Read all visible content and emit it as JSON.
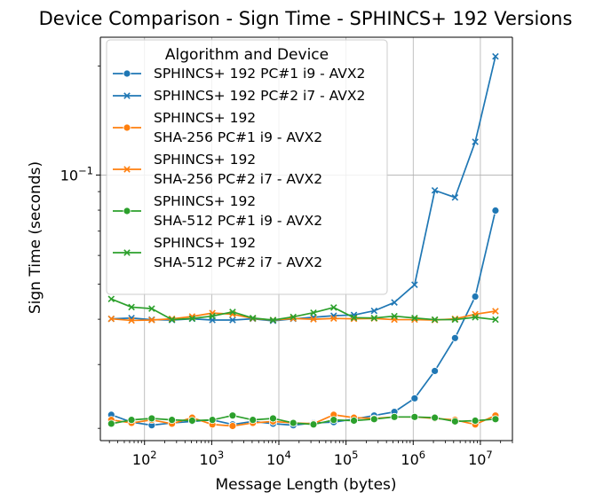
{
  "chart_data": {
    "type": "line",
    "title": "Device Comparison - Sign Time - SPHINCS+ 192 Versions",
    "xlabel": "Message Length (bytes)",
    "ylabel": "Sign Time (seconds)",
    "x_scale": "log",
    "y_scale": "log",
    "xlim": [
      22,
      30000000
    ],
    "ylim": [
      0.0185,
      0.24
    ],
    "x_ticks": [
      {
        "value": 100,
        "base": "10",
        "exp": "2"
      },
      {
        "value": 1000,
        "base": "10",
        "exp": "3"
      },
      {
        "value": 10000,
        "base": "10",
        "exp": "4"
      },
      {
        "value": 100000,
        "base": "10",
        "exp": "5"
      },
      {
        "value": 1000000,
        "base": "10",
        "exp": "6"
      },
      {
        "value": 10000000,
        "base": "10",
        "exp": "7"
      }
    ],
    "y_ticks": [
      {
        "value": 0.1,
        "base": "10",
        "exp": "−1"
      }
    ],
    "grid": true,
    "legend": {
      "title": "Algorithm and Device",
      "placement": "top-left"
    },
    "x": [
      32,
      64,
      128,
      256,
      512,
      1024,
      2048,
      4096,
      8192,
      16384,
      32768,
      65536,
      131072,
      262144,
      524288,
      1048576,
      2097152,
      4194304,
      8388608,
      16777216
    ],
    "series": [
      {
        "name_lines": [
          "SPHINCS+ 192 PC#1 i9 - AVX2"
        ],
        "color": "#1f77b4",
        "marker": "circle",
        "values": [
          0.0218,
          0.0208,
          0.0204,
          0.0207,
          0.0209,
          0.0211,
          0.0205,
          0.0209,
          0.0206,
          0.0204,
          0.0207,
          0.0208,
          0.0212,
          0.0217,
          0.0222,
          0.0242,
          0.0288,
          0.0355,
          0.0462,
          0.0798
        ]
      },
      {
        "name_lines": [
          "SPHINCS+ 192 PC#2 i7 - AVX2"
        ],
        "color": "#1f77b4",
        "marker": "x",
        "values": [
          0.0401,
          0.0403,
          0.0399,
          0.0398,
          0.0401,
          0.0398,
          0.0398,
          0.0401,
          0.0396,
          0.0401,
          0.0405,
          0.0409,
          0.0411,
          0.0422,
          0.0445,
          0.0498,
          0.0907,
          0.0867,
          0.1235,
          0.2125
        ]
      },
      {
        "name_lines": [
          "SPHINCS+ 192",
          "SHA-256 PC#1 i9 - AVX2"
        ],
        "color": "#ff7f0e",
        "marker": "circle",
        "values": [
          0.0211,
          0.0207,
          0.0211,
          0.0206,
          0.0214,
          0.0205,
          0.0203,
          0.0207,
          0.0209,
          0.0207,
          0.0206,
          0.0218,
          0.0214,
          0.0213,
          0.0215,
          0.0215,
          0.0213,
          0.0211,
          0.0205,
          0.0217
        ]
      },
      {
        "name_lines": [
          "SPHINCS+ 192",
          "SHA-256 PC#2 i7 - AVX2"
        ],
        "color": "#ff7f0e",
        "marker": "x",
        "values": [
          0.0401,
          0.0397,
          0.0398,
          0.0401,
          0.0407,
          0.0416,
          0.0413,
          0.0402,
          0.0398,
          0.0402,
          0.04,
          0.0402,
          0.0401,
          0.0402,
          0.0399,
          0.0399,
          0.0398,
          0.0401,
          0.0413,
          0.0421
        ]
      },
      {
        "name_lines": [
          "SPHINCS+ 192",
          "SHA-512 PC#1 i9 - AVX2"
        ],
        "color": "#2ca02c",
        "marker": "circle",
        "values": [
          0.0206,
          0.0211,
          0.0213,
          0.0211,
          0.021,
          0.0211,
          0.0217,
          0.0211,
          0.0213,
          0.0207,
          0.0205,
          0.0211,
          0.021,
          0.0212,
          0.0215,
          0.0215,
          0.0214,
          0.0209,
          0.021,
          0.0212
        ]
      },
      {
        "name_lines": [
          "SPHINCS+ 192",
          "SHA-512 PC#2 i7 - AVX2"
        ],
        "color": "#2ca02c",
        "marker": "x",
        "values": [
          0.0455,
          0.0432,
          0.0428,
          0.0399,
          0.0402,
          0.0408,
          0.0419,
          0.0403,
          0.0398,
          0.0406,
          0.0417,
          0.0431,
          0.0404,
          0.0403,
          0.0408,
          0.0403,
          0.0399,
          0.0399,
          0.0405,
          0.0399
        ]
      }
    ]
  }
}
